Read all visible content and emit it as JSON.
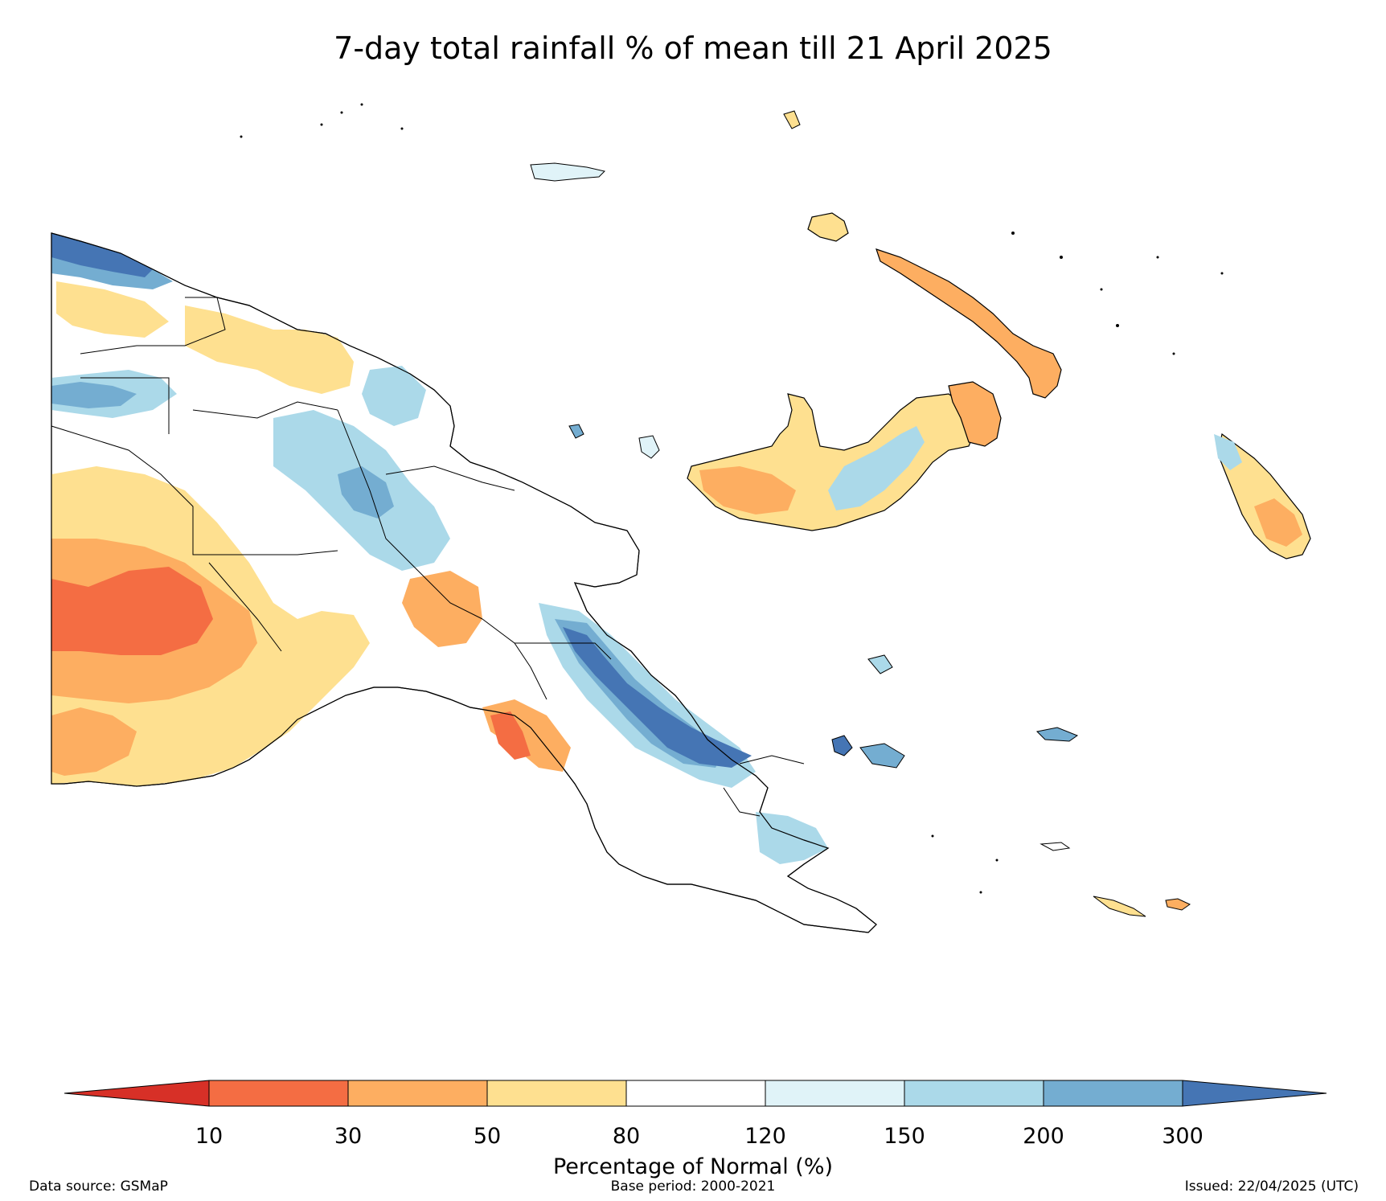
{
  "title": "7-day total rainfall % of mean till 21 April 2025",
  "map": {
    "region": "Papua New Guinea",
    "legend_colors": {
      "below_10": "#d73027",
      "10_30": "#f46d43",
      "30_50": "#fdae61",
      "50_80": "#fee090",
      "80_120": "#ffffff",
      "120_150": "#e0f3f8",
      "150_200": "#abd9e9",
      "200_300": "#74add1",
      "above_300": "#4575b4"
    }
  },
  "colorbar": {
    "ticks": [
      "10",
      "30",
      "50",
      "80",
      "120",
      "150",
      "200",
      "300"
    ],
    "label": "Percentage of Normal (%)"
  },
  "footer": {
    "source": "Data source: GSMaP",
    "base_period": "Base period: 2000-2021",
    "issued": "Issued: 22/04/2025 (UTC)"
  }
}
